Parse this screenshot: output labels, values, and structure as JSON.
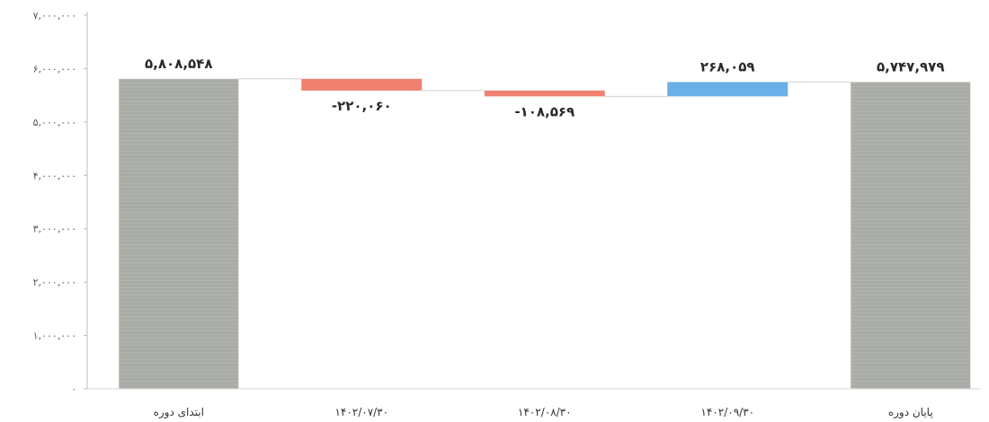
{
  "chart_data": {
    "type": "waterfall",
    "categories": [
      "ابتدای دوره",
      "۱۴۰۲/۰۷/۳۰",
      "۱۴۰۲/۰۸/۳۰",
      "۱۴۰۲/۰۹/۳۰",
      "پایان دوره"
    ],
    "steps": [
      {
        "category": "ابتدای دوره",
        "kind": "total",
        "value": 5808548,
        "label": "۵,۸۰۸,۵۴۸"
      },
      {
        "category": "۱۴۰۲/۰۷/۳۰",
        "kind": "delta",
        "value": -220060,
        "label": "-۲۲۰,۰۶۰"
      },
      {
        "category": "۱۴۰۲/۰۸/۳۰",
        "kind": "delta",
        "value": -108569,
        "label": "-۱۰۸,۵۶۹"
      },
      {
        "category": "۱۴۰۲/۰۹/۳۰",
        "kind": "delta",
        "value": 268059,
        "label": "۲۶۸,۰۵۹"
      },
      {
        "category": "پایان دوره",
        "kind": "total",
        "value": 5747979,
        "label": "۵,۷۴۷,۹۷۹"
      }
    ],
    "yticks": [
      {
        "value": 0,
        "label": "۰"
      },
      {
        "value": 1000000,
        "label": "۱,۰۰۰,۰۰۰"
      },
      {
        "value": 2000000,
        "label": "۲,۰۰۰,۰۰۰"
      },
      {
        "value": 3000000,
        "label": "۳,۰۰۰,۰۰۰"
      },
      {
        "value": 4000000,
        "label": "۴,۰۰۰,۰۰۰"
      },
      {
        "value": 5000000,
        "label": "۵,۰۰۰,۰۰۰"
      },
      {
        "value": 6000000,
        "label": "۶,۰۰۰,۰۰۰"
      },
      {
        "value": 7000000,
        "label": "۷,۰۰۰,۰۰۰"
      }
    ],
    "ylim": [
      0,
      7000000
    ],
    "grid": false,
    "legend": "none",
    "title": "",
    "xlabel": "",
    "ylabel": "",
    "colors": {
      "total": "#a9aca6",
      "decrease": "#f08070",
      "increase": "#6ab0e6"
    }
  }
}
